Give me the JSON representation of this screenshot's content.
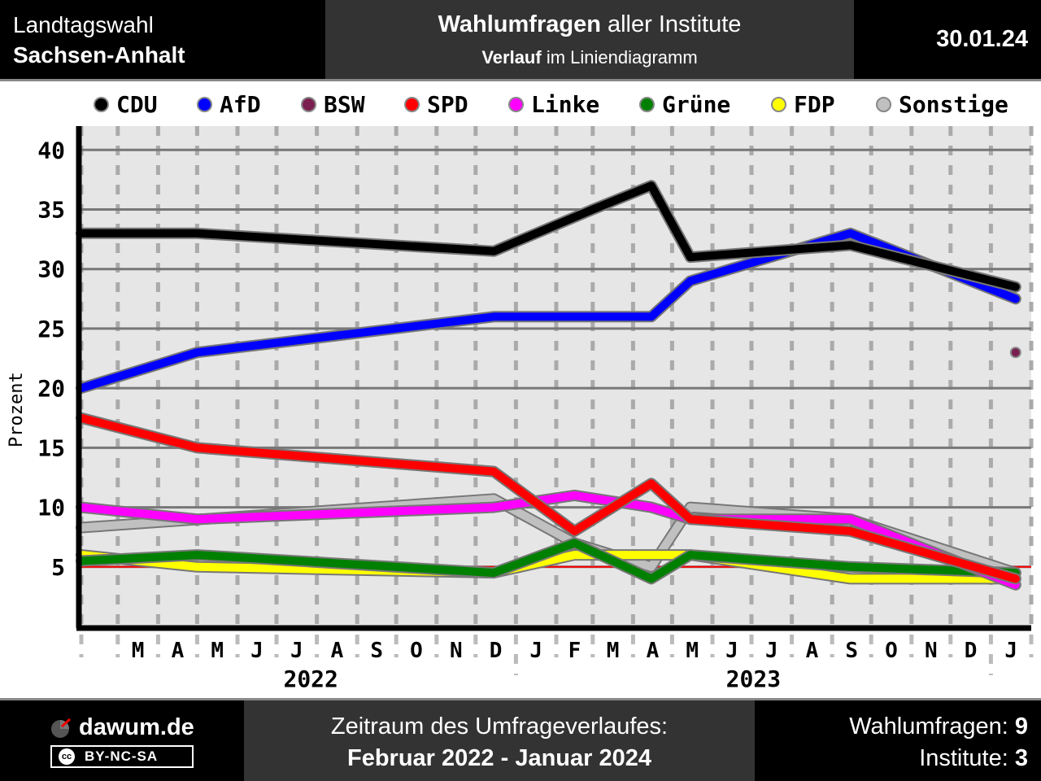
{
  "header": {
    "election_line1": "Landtagswahl",
    "election_line2": "Sachsen-Anhalt",
    "title_bold": "Wahlumfragen",
    "title_rest": " aller Institute",
    "subtitle_bold": "Verlauf",
    "subtitle_rest": " im Liniendiagramm",
    "date": "30.01.24"
  },
  "colors": {
    "CDU": "#000000",
    "AfD": "#0000ff",
    "BSW": "#7a2050",
    "SPD": "#ff0000",
    "Linke": "#ff00ff",
    "Grüne": "#008000",
    "FDP": "#ffff00",
    "Sonstige": "#c0c0c0"
  },
  "chart_data": {
    "type": "line",
    "ylabel": "Prozent",
    "ylim": [
      0,
      42
    ],
    "yticks": [
      5,
      10,
      15,
      20,
      25,
      30,
      35,
      40
    ],
    "x_range": [
      "2022-02-01",
      "2024-02-01"
    ],
    "month_labels": [
      "M",
      "A",
      "M",
      "J",
      "J",
      "A",
      "S",
      "O",
      "N",
      "D",
      "J",
      "F",
      "M",
      "A",
      "M",
      "J",
      "J",
      "A",
      "S",
      "O",
      "N",
      "D",
      "J"
    ],
    "year_labels": [
      "2022",
      "2023"
    ],
    "threshold": 5,
    "legend_position": "top",
    "series": [
      {
        "name": "CDU",
        "points": [
          [
            "2022-02-01",
            33
          ],
          [
            "2022-05-01",
            33
          ],
          [
            "2022-12-15",
            31.5
          ],
          [
            "2023-03-01",
            35
          ],
          [
            "2023-04-15",
            37
          ],
          [
            "2023-05-15",
            31
          ],
          [
            "2023-09-15",
            32
          ],
          [
            "2024-01-20",
            28.5
          ]
        ]
      },
      {
        "name": "AfD",
        "points": [
          [
            "2022-02-01",
            20
          ],
          [
            "2022-05-01",
            23
          ],
          [
            "2022-12-15",
            26
          ],
          [
            "2023-04-15",
            26
          ],
          [
            "2023-05-15",
            29
          ],
          [
            "2023-09-15",
            33
          ],
          [
            "2024-01-20",
            27.5
          ]
        ]
      },
      {
        "name": "BSW",
        "points": [
          [
            "2024-01-20",
            23
          ]
        ]
      },
      {
        "name": "SPD",
        "points": [
          [
            "2022-02-01",
            17.5
          ],
          [
            "2022-05-01",
            15
          ],
          [
            "2022-12-15",
            13
          ],
          [
            "2023-02-15",
            8
          ],
          [
            "2023-04-15",
            12
          ],
          [
            "2023-05-15",
            9
          ],
          [
            "2023-09-15",
            8
          ],
          [
            "2024-01-20",
            4
          ]
        ]
      },
      {
        "name": "Linke",
        "points": [
          [
            "2022-02-01",
            10
          ],
          [
            "2022-05-01",
            9
          ],
          [
            "2022-12-15",
            10
          ],
          [
            "2023-02-15",
            11
          ],
          [
            "2023-04-15",
            10
          ],
          [
            "2023-05-15",
            9
          ],
          [
            "2023-09-15",
            9
          ],
          [
            "2024-01-20",
            3.5
          ]
        ]
      },
      {
        "name": "Grüne",
        "points": [
          [
            "2022-02-01",
            5.5
          ],
          [
            "2022-05-01",
            6
          ],
          [
            "2022-12-15",
            4.5
          ],
          [
            "2023-02-15",
            7
          ],
          [
            "2023-04-15",
            4
          ],
          [
            "2023-05-15",
            6
          ],
          [
            "2023-09-15",
            5
          ],
          [
            "2024-01-20",
            4.5
          ]
        ]
      },
      {
        "name": "FDP",
        "points": [
          [
            "2022-02-01",
            6
          ],
          [
            "2022-05-01",
            5
          ],
          [
            "2022-12-15",
            4.5
          ],
          [
            "2023-02-15",
            6
          ],
          [
            "2023-05-15",
            6
          ],
          [
            "2023-09-15",
            4
          ],
          [
            "2024-01-20",
            4
          ]
        ]
      },
      {
        "name": "Sonstige",
        "points": [
          [
            "2022-02-01",
            8.3
          ],
          [
            "2022-12-15",
            10.7
          ],
          [
            "2023-02-15",
            7
          ],
          [
            "2023-04-15",
            5
          ],
          [
            "2023-05-15",
            10
          ],
          [
            "2023-09-15",
            9
          ],
          [
            "2024-01-20",
            4.5
          ]
        ]
      }
    ]
  },
  "footer": {
    "brand": "dawum.de",
    "license": "BY-NC-SA",
    "license_badge": "cc",
    "period_label": "Zeitraum des Umfrageverlaufes:",
    "period_value": "Februar 2022 - Januar 2024",
    "polls_label": "Wahlumfragen: ",
    "polls_value": "9",
    "institutes_label": "Institute: ",
    "institutes_value": "3"
  }
}
